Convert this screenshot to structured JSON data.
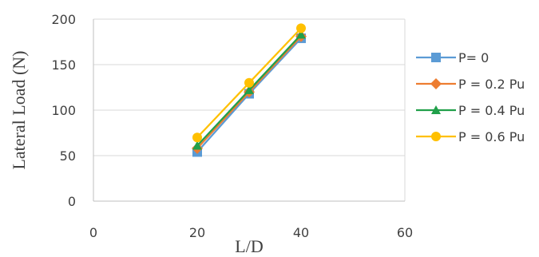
{
  "chart_data": {
    "type": "line",
    "xlabel": "L/D",
    "ylabel": "Lateral Load (N)",
    "xlim": [
      0,
      60
    ],
    "ylim": [
      0,
      200
    ],
    "x_ticks": [
      "0",
      "20",
      "40",
      "60"
    ],
    "y_ticks": [
      "0",
      "50",
      "100",
      "150",
      "200"
    ],
    "grid": "horizontal",
    "legend_position": "right",
    "x": [
      20,
      30,
      40
    ],
    "series": [
      {
        "name": "P= 0",
        "values": [
          54,
          118,
          179
        ],
        "color": "#5b9bd5",
        "marker": "square"
      },
      {
        "name": "P = 0.2 Pu",
        "values": [
          58,
          120,
          181
        ],
        "color": "#ed7d31",
        "marker": "diamond"
      },
      {
        "name": "P = 0.4 Pu",
        "values": [
          61,
          122,
          183
        ],
        "color": "#21a04a",
        "marker": "triangle"
      },
      {
        "name": "P = 0.6 Pu",
        "values": [
          70,
          130,
          190
        ],
        "color": "#ffc000",
        "marker": "circle"
      }
    ]
  }
}
